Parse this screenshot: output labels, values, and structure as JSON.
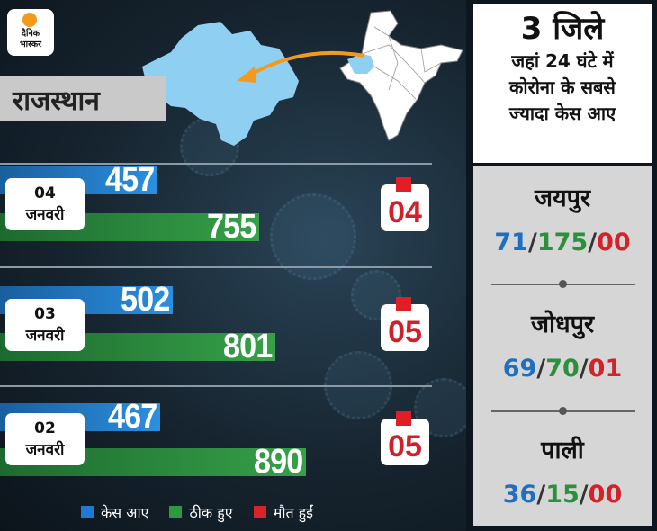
{
  "logo": {
    "line1": "दैनिक",
    "line2": "भास्कर"
  },
  "state": "राजस्थान",
  "colors": {
    "cases": "#2b8fe0",
    "recovered": "#36a148",
    "deaths": "#e11d25"
  },
  "chart_data": {
    "type": "bar",
    "orientation": "horizontal",
    "categories": [
      "04 जनवरी",
      "03 जनवरी",
      "02 जनवरी"
    ],
    "series": [
      {
        "name": "केस आए",
        "values": [
          457,
          502,
          467
        ]
      },
      {
        "name": "ठीक हुए",
        "values": [
          755,
          801,
          890
        ]
      },
      {
        "name": "मौत हुईं",
        "values": [
          "04",
          "05",
          "05"
        ]
      }
    ],
    "dates": [
      {
        "day": "04",
        "month": "जनवरी"
      },
      {
        "day": "03",
        "month": "जनवरी"
      },
      {
        "day": "02",
        "month": "जनवरी"
      }
    ],
    "legend": [
      "केस आए",
      "ठीक हुए",
      "मौत हुईं"
    ],
    "legend_position": "bottom"
  },
  "sidebar": {
    "title_big": "3 जिले",
    "title_lines": [
      "जहां 24 घंटे में",
      "कोरोना के सबसे",
      "ज्यादा केस आए"
    ],
    "districts": [
      {
        "name": "जयपुर",
        "cases": "71",
        "recovered": "175",
        "deaths": "00"
      },
      {
        "name": "जोधपुर",
        "cases": "69",
        "recovered": "70",
        "deaths": "01"
      },
      {
        "name": "पाली",
        "cases": "36",
        "recovered": "15",
        "deaths": "00"
      }
    ]
  }
}
